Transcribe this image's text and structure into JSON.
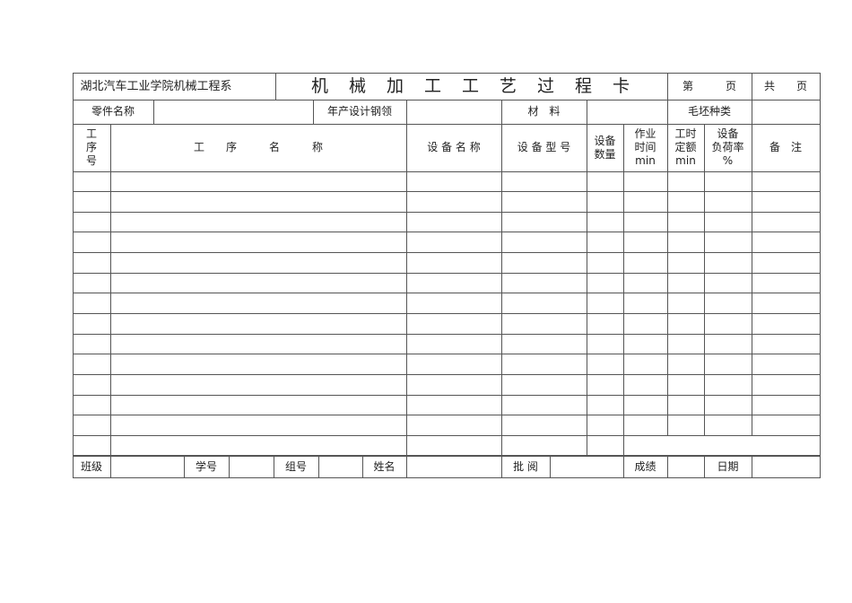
{
  "header": {
    "department": "湖北汽车工业学院机械工程系",
    "title": "机　械　加　工　工　艺　过　程　卡",
    "page_label": "第　　　页",
    "total_label": "共　　页"
  },
  "info": {
    "part_name": "零件名称",
    "annual_output": "年产设计钢领",
    "material": "材　料",
    "blank_type": "毛坯种类"
  },
  "columns": [
    "工\n序\n号",
    "工　　序　　　名　　　称",
    "设 备 名 称",
    "设 备 型 号",
    "设备\n数量",
    "作业\n时间\nmin",
    "工时\n定额\nmin",
    "设备\n负荷率\n%",
    "备　注"
  ],
  "footer": {
    "class": "班级",
    "student_id": "学号",
    "group": "组号",
    "name": "姓名",
    "review": "批 阅",
    "score": "成绩",
    "date": "日期"
  },
  "data_row_count": 14
}
